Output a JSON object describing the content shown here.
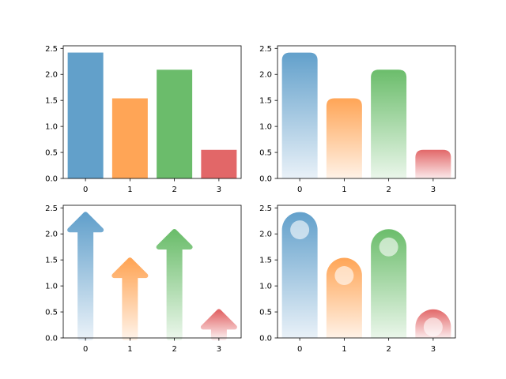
{
  "chart_data": [
    {
      "type": "bar",
      "style": "flat",
      "categories": [
        "0",
        "1",
        "2",
        "3"
      ],
      "values": [
        2.42,
        1.54,
        2.09,
        0.55
      ],
      "ylim": [
        0,
        2.55
      ],
      "yticks": [
        "0.0",
        "0.5",
        "1.0",
        "1.5",
        "2.0",
        "2.5"
      ],
      "grid": false,
      "colors": [
        "#1f77b4",
        "#ff7f0e",
        "#2ca02c",
        "#d62728"
      ]
    },
    {
      "type": "bar",
      "style": "rounded-gradient",
      "categories": [
        "0",
        "1",
        "2",
        "3"
      ],
      "values": [
        2.42,
        1.54,
        2.09,
        0.55
      ],
      "ylim": [
        0,
        2.55
      ],
      "yticks": [
        "0.0",
        "0.5",
        "1.0",
        "1.5",
        "2.0",
        "2.5"
      ],
      "grid": false,
      "colors": [
        "#1f77b4",
        "#ff7f0e",
        "#2ca02c",
        "#d62728"
      ]
    },
    {
      "type": "bar",
      "style": "arrow-gradient",
      "categories": [
        "0",
        "1",
        "2",
        "3"
      ],
      "values": [
        2.38,
        1.5,
        2.05,
        0.51
      ],
      "ylim": [
        0,
        2.55
      ],
      "yticks": [
        "0.0",
        "0.5",
        "1.0",
        "1.5",
        "2.0",
        "2.5"
      ],
      "grid": false,
      "colors": [
        "#1f77b4",
        "#ff7f0e",
        "#2ca02c",
        "#d62728"
      ]
    },
    {
      "type": "bar",
      "style": "rounded-gradient-circle",
      "categories": [
        "0",
        "1",
        "2",
        "3"
      ],
      "values": [
        2.42,
        1.54,
        2.09,
        0.55
      ],
      "ylim": [
        0,
        2.55
      ],
      "yticks": [
        "0.0",
        "0.5",
        "1.0",
        "1.5",
        "2.0",
        "2.5"
      ],
      "grid": false,
      "colors": [
        "#1f77b4",
        "#ff7f0e",
        "#2ca02c",
        "#d62728"
      ]
    }
  ]
}
